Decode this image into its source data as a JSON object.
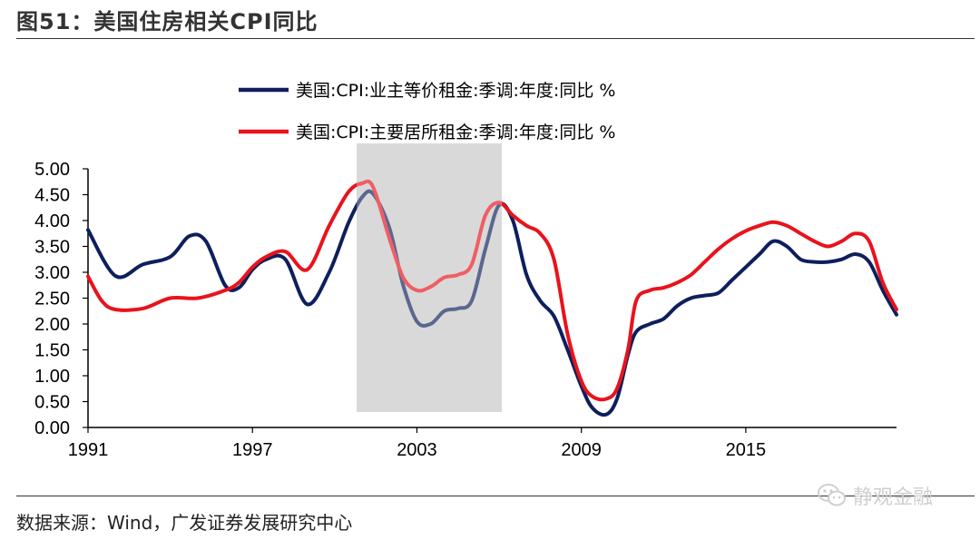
{
  "figure": {
    "title": "图51：美国住房相关CPI同比",
    "source": "数据来源：Wind，广发证券发展研究中心",
    "watermark": "静观金融",
    "watermark_icon": "wechat-icon"
  },
  "chart_data": {
    "type": "line",
    "x_ticks": [
      "1991",
      "1997",
      "2003",
      "2009",
      "2015"
    ],
    "y_ticks": [
      "5.00",
      "4.50",
      "4.00",
      "3.50",
      "3.00",
      "2.50",
      "2.00",
      "1.50",
      "1.00",
      "0.50",
      "0.00"
    ],
    "xlim": [
      1991,
      2020.5
    ],
    "ylim": [
      0,
      5
    ],
    "shaded_region": [
      2000.8,
      2006.1
    ],
    "shade_color": "#d9d9d9",
    "legend_position": "top",
    "series": [
      {
        "name": "美国:CPI:业主等价租金:季调:年度:同比 %",
        "color": "#0d1f5c",
        "x": [
          1991,
          1992,
          1993,
          1994,
          1994.7,
          1995.3,
          1996,
          1996.5,
          1997,
          1997.5,
          1998.2,
          1999,
          1999.8,
          2000.5,
          2001,
          2001.4,
          2002,
          2002.5,
          2003,
          2003.5,
          2004,
          2004.5,
          2005,
          2005.5,
          2006,
          2006.5,
          2007,
          2007.5,
          2008,
          2008.5,
          2009,
          2009.4,
          2009.9,
          2010.3,
          2010.7,
          2011,
          2011.5,
          2012,
          2012.5,
          2013,
          2013.5,
          2014,
          2014.5,
          2015,
          2015.5,
          2016,
          2016.5,
          2017,
          2017.5,
          2018,
          2018.5,
          2019,
          2019.5,
          2020,
          2020.5
        ],
        "y": [
          3.82,
          2.93,
          3.15,
          3.3,
          3.7,
          3.6,
          2.75,
          2.7,
          3.05,
          3.25,
          3.25,
          2.38,
          3.0,
          3.95,
          4.45,
          4.52,
          3.85,
          2.75,
          2.05,
          2.0,
          2.25,
          2.3,
          2.45,
          3.45,
          4.3,
          4.0,
          2.95,
          2.45,
          2.15,
          1.5,
          0.8,
          0.38,
          0.25,
          0.55,
          1.4,
          1.85,
          2.0,
          2.1,
          2.35,
          2.5,
          2.55,
          2.6,
          2.85,
          3.1,
          3.35,
          3.6,
          3.5,
          3.25,
          3.2,
          3.2,
          3.25,
          3.35,
          3.2,
          2.65,
          2.18
        ]
      },
      {
        "name": "美国:CPI:主要居所租金:季调:年度:同比 %",
        "color": "#e8131c",
        "x": [
          1991,
          1991.5,
          1992,
          1993,
          1994,
          1995,
          1996,
          1996.5,
          1997,
          1997.5,
          1998.2,
          1999,
          1999.8,
          2000.5,
          2001,
          2001.4,
          2002,
          2002.5,
          2003,
          2003.5,
          2004,
          2004.5,
          2005,
          2005.5,
          2006,
          2006.5,
          2007,
          2007.5,
          2008,
          2008.5,
          2009,
          2009.4,
          2009.9,
          2010.3,
          2010.7,
          2011,
          2011.5,
          2012,
          2012.5,
          2013,
          2013.5,
          2014,
          2014.5,
          2015,
          2015.5,
          2016,
          2016.5,
          2017,
          2017.5,
          2018,
          2018.5,
          2019,
          2019.5,
          2020,
          2020.5
        ],
        "y": [
          2.92,
          2.45,
          2.28,
          2.3,
          2.5,
          2.5,
          2.65,
          2.8,
          3.1,
          3.3,
          3.4,
          3.05,
          3.9,
          4.55,
          4.72,
          4.65,
          3.65,
          2.9,
          2.65,
          2.72,
          2.9,
          2.95,
          3.15,
          4.1,
          4.35,
          4.1,
          3.9,
          3.75,
          3.25,
          1.8,
          0.9,
          0.6,
          0.55,
          0.75,
          1.5,
          2.45,
          2.65,
          2.7,
          2.8,
          2.95,
          3.2,
          3.45,
          3.65,
          3.8,
          3.9,
          3.97,
          3.9,
          3.75,
          3.6,
          3.5,
          3.6,
          3.75,
          3.6,
          2.8,
          2.28
        ]
      }
    ]
  }
}
